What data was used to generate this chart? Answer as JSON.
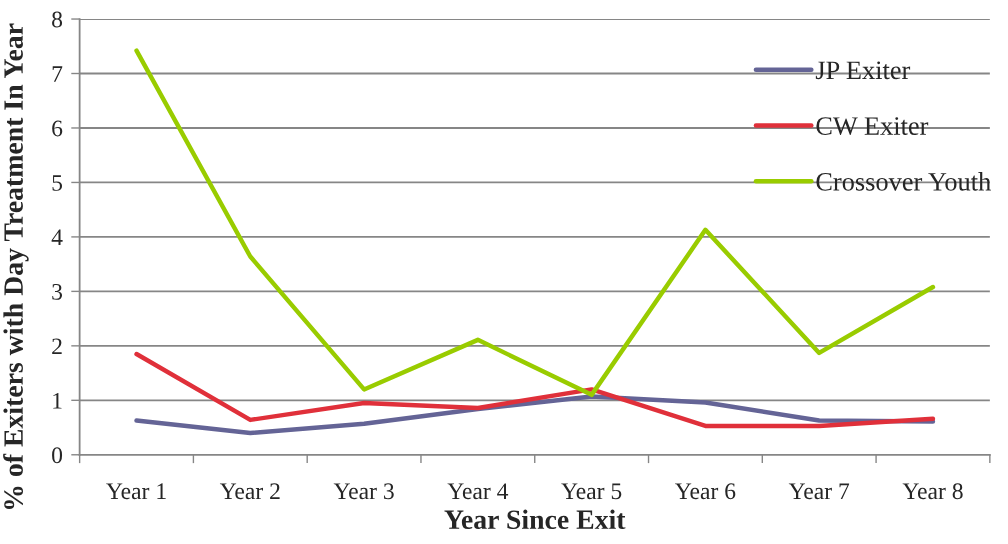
{
  "chart_data": {
    "type": "line",
    "xlabel": "Year Since Exit",
    "ylabel": "% of Exiters with Day Treatment In Year",
    "categories": [
      "Year 1",
      "Year 2",
      "Year 3",
      "Year 4",
      "Year 5",
      "Year 6",
      "Year 7",
      "Year 8"
    ],
    "series": [
      {
        "name": "JP Exiter",
        "color": "#646496",
        "values": [
          0.63,
          0.4,
          0.57,
          0.84,
          1.07,
          0.96,
          0.63,
          0.61
        ]
      },
      {
        "name": "CW Exiter",
        "color": "#e0303a",
        "values": [
          1.85,
          0.64,
          0.95,
          0.86,
          1.2,
          0.53,
          0.53,
          0.66
        ]
      },
      {
        "name": "Crossover Youth",
        "color": "#99cc00",
        "values": [
          7.42,
          3.64,
          1.2,
          2.11,
          1.1,
          4.13,
          1.87,
          3.08
        ]
      }
    ],
    "ylim": [
      0,
      8
    ],
    "yticks": [
      0,
      1,
      2,
      3,
      4,
      5,
      6,
      7,
      8
    ],
    "grid": "y",
    "legend": "top right",
    "marker": "none",
    "line_style": "solid"
  }
}
